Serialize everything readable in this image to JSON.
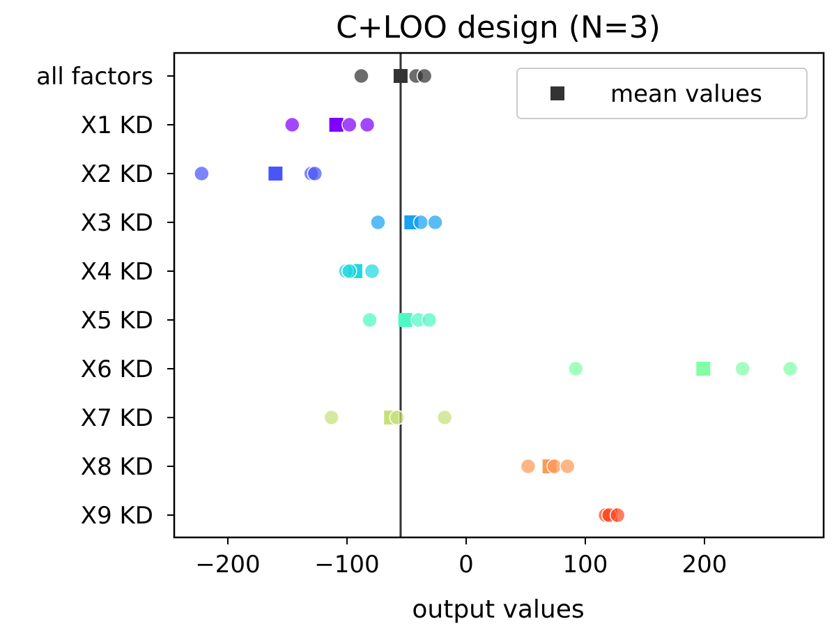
{
  "chart_data": {
    "type": "scatter",
    "title": "C+LOO design (N=3)",
    "xlabel": "output values",
    "ylabel": "",
    "xlim": [
      -245,
      300
    ],
    "xticks": [
      -200,
      -100,
      0,
      100,
      200
    ],
    "xtick_labels": [
      "−200",
      "−100",
      "0",
      "100",
      "200"
    ],
    "reference_line_x": -55,
    "grid": false,
    "legend": {
      "position": "top-right",
      "entries": [
        "mean values"
      ],
      "marker": "square",
      "color": "#333333"
    },
    "categories": [
      "all factors",
      "X1 KD",
      "X2 KD",
      "X3 KD",
      "X4 KD",
      "X5 KD",
      "X6 KD",
      "X7 KD",
      "X8 KD",
      "X9 KD"
    ],
    "series": [
      {
        "category": "all factors",
        "color": "#333333",
        "points": [
          -88,
          -42,
          -35
        ],
        "mean": -55
      },
      {
        "category": "X1 KD",
        "color": "#8000ff",
        "points": [
          -146,
          -98,
          -83
        ],
        "mean": -109
      },
      {
        "category": "X2 KD",
        "color": "#4a54fb",
        "points": [
          -222,
          -130,
          -127
        ],
        "mean": -160
      },
      {
        "category": "X3 KD",
        "color": "#1aa2f0",
        "points": [
          -74,
          -38,
          -26
        ],
        "mean": -46
      },
      {
        "category": "X4 KD",
        "color": "#1ed8df",
        "points": [
          -101,
          -98,
          -79
        ],
        "mean": -93
      },
      {
        "category": "X5 KD",
        "color": "#4cf9c4",
        "points": [
          -81,
          -40,
          -31
        ],
        "mean": -51
      },
      {
        "category": "X6 KD",
        "color": "#80ffa4",
        "points": [
          92,
          232,
          272
        ],
        "mean": 199
      },
      {
        "category": "X7 KD",
        "color": "#c8e07c",
        "points": [
          -113,
          -58,
          -18
        ],
        "mean": -63
      },
      {
        "category": "X8 KD",
        "color": "#ff9a56",
        "points": [
          52,
          74,
          85
        ],
        "mean": 70
      },
      {
        "category": "X9 KD",
        "color": "#ff4c24",
        "points": [
          117,
          120,
          127
        ],
        "mean": 121
      }
    ]
  }
}
